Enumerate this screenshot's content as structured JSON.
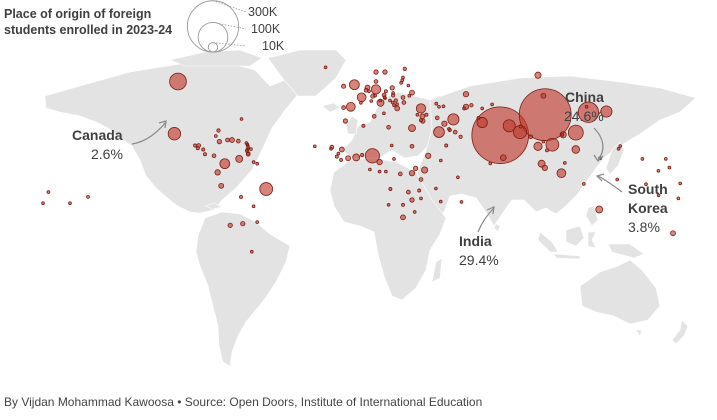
{
  "legend": {
    "title": "Place of origin of foreign students enrolled in 2023-24",
    "sizes": [
      {
        "label": "300K",
        "value": 300000
      },
      {
        "label": "100K",
        "value": 100000
      },
      {
        "label": "10K",
        "value": 10000
      }
    ]
  },
  "colors": {
    "bubble_fill": "#c0392b",
    "bubble_stroke": "#7b1d14",
    "land": "#e3e3e3",
    "water": "#ffffff"
  },
  "annotations": {
    "china": {
      "name": "China",
      "share": "24.6%"
    },
    "india": {
      "name": "India",
      "share": "29.4%"
    },
    "canada": {
      "name": "Canada",
      "share": "2.6%"
    },
    "korea": {
      "name_line1": "South",
      "name_line2": "Korea",
      "share": "3.8%"
    }
  },
  "chart_data": {
    "type": "scatter",
    "title": "Place of origin of foreign students enrolled in 2023-24",
    "size_legend": [
      300000,
      100000,
      10000
    ],
    "points": [
      {
        "lon": 104,
        "lat": 35,
        "value": 277000
      },
      {
        "lon": 79,
        "lat": 22,
        "value": 331000
      },
      {
        "lon": -100,
        "lat": 56,
        "value": 29000
      },
      {
        "lon": 128,
        "lat": 36.5,
        "value": 43000
      },
      {
        "lon": 90,
        "lat": 24,
        "value": 18000
      },
      {
        "lon": 84,
        "lat": 28,
        "value": 15000
      },
      {
        "lon": 108,
        "lat": 16,
        "value": 17000
      },
      {
        "lon": 138,
        "lat": 37,
        "value": 13000
      },
      {
        "lon": 121,
        "lat": 23.7,
        "value": 23000
      },
      {
        "lon": 100,
        "lat": 15,
        "value": 7000
      },
      {
        "lon": 113,
        "lat": -2,
        "value": 8000
      },
      {
        "lon": 121,
        "lat": 13,
        "value": 6000
      },
      {
        "lon": 45,
        "lat": 24,
        "value": 12000
      },
      {
        "lon": 8,
        "lat": 9,
        "value": 21000
      },
      {
        "lon": 37,
        "lat": 0,
        "value": 4000
      },
      {
        "lon": 35,
        "lat": 39,
        "value": 9000
      },
      {
        "lon": 53,
        "lat": 32,
        "value": 13000
      },
      {
        "lon": 69,
        "lat": 30,
        "value": 11000
      },
      {
        "lon": -51,
        "lat": -12,
        "value": 17000
      },
      {
        "lon": -102,
        "lat": 23,
        "value": 16000
      },
      {
        "lon": -74,
        "lat": 4,
        "value": 10000
      },
      {
        "lon": 10,
        "lat": 51,
        "value": 9000
      },
      {
        "lon": -2,
        "lat": 54,
        "value": 10000
      },
      {
        "lon": 2,
        "lat": 46,
        "value": 8000
      },
      {
        "lon": 12.5,
        "lat": 42.5,
        "value": 5000
      },
      {
        "lon": -4,
        "lat": 40,
        "value": 8000
      },
      {
        "lon": 134,
        "lat": -25,
        "value": 5000
      },
      {
        "lon": 100,
        "lat": 60,
        "value": 4000
      },
      {
        "lon": 60,
        "lat": 48,
        "value": 3000
      },
      {
        "lon": 60,
        "lat": 40,
        "value": 3000
      },
      {
        "lon": 30,
        "lat": 49,
        "value": 2500
      },
      {
        "lon": 19,
        "lat": 52,
        "value": 2000
      },
      {
        "lon": -64,
        "lat": -34,
        "value": 2000
      },
      {
        "lon": -71,
        "lat": -35,
        "value": 2000
      },
      {
        "lon": -76,
        "lat": -10,
        "value": 2500
      },
      {
        "lon": -78,
        "lat": -1.5,
        "value": 3000
      },
      {
        "lon": -66,
        "lat": 7,
        "value": 5000
      },
      {
        "lon": -70,
        "lat": 19,
        "value": 2500
      },
      {
        "lon": -77,
        "lat": 18,
        "value": 2000
      },
      {
        "lon": -72.5,
        "lat": 19,
        "value": 1500
      },
      {
        "lon": -66.5,
        "lat": 18.3,
        "value": 1500
      },
      {
        "lon": -61,
        "lat": 10.5,
        "value": 1500
      },
      {
        "lon": -61,
        "lat": 14,
        "value": 700
      },
      {
        "lon": -61.2,
        "lat": 15.4,
        "value": 700
      },
      {
        "lon": -61.5,
        "lat": 16.2,
        "value": 700
      },
      {
        "lon": -62,
        "lat": 17.1,
        "value": 700
      },
      {
        "lon": -61.5,
        "lat": 13,
        "value": 700
      },
      {
        "lon": -59.5,
        "lat": 13.2,
        "value": 700
      },
      {
        "lon": -61.8,
        "lat": 12.1,
        "value": 700
      },
      {
        "lon": -88.5,
        "lat": 15.5,
        "value": 1500
      },
      {
        "lon": -86,
        "lat": 13,
        "value": 1000
      },
      {
        "lon": -85,
        "lat": 10,
        "value": 1000
      },
      {
        "lon": -80,
        "lat": 9,
        "value": 1500
      },
      {
        "lon": -89,
        "lat": 13.8,
        "value": 1000
      },
      {
        "lon": -90.5,
        "lat": 15.5,
        "value": 1000
      },
      {
        "lon": -79,
        "lat": 21.5,
        "value": 700
      },
      {
        "lon": -77.5,
        "lat": 25,
        "value": 1200
      },
      {
        "lon": -58,
        "lat": 5,
        "value": 700
      },
      {
        "lon": -56,
        "lat": 4,
        "value": 500
      },
      {
        "lon": -65,
        "lat": -17,
        "value": 1000
      },
      {
        "lon": -58,
        "lat": -23,
        "value": 800
      },
      {
        "lon": -56,
        "lat": -33,
        "value": 700
      },
      {
        "lon": -61,
        "lat": 10,
        "value": 1500
      },
      {
        "lon": -64.7,
        "lat": 32.3,
        "value": 500
      },
      {
        "lon": -24,
        "lat": 15,
        "value": 500
      },
      {
        "lon": -59,
        "lat": -51.7,
        "value": 300
      },
      {
        "lon": -150,
        "lat": -17,
        "value": 300
      },
      {
        "lon": -172,
        "lat": -14,
        "value": 300
      },
      {
        "lon": -160,
        "lat": -21,
        "value": 300
      },
      {
        "lon": 3,
        "lat": 28,
        "value": 1000
      },
      {
        "lon": -7,
        "lat": 31,
        "value": 2000
      },
      {
        "lon": 9,
        "lat": 34,
        "value": 1500
      },
      {
        "lon": 17,
        "lat": 27,
        "value": 1500
      },
      {
        "lon": 30,
        "lat": 26.5,
        "value": 5000
      },
      {
        "lon": 30,
        "lat": 15,
        "value": 1500
      },
      {
        "lon": 39,
        "lat": 9,
        "value": 3000
      },
      {
        "lon": 46,
        "lat": 6,
        "value": 800
      },
      {
        "lon": -1,
        "lat": 8,
        "value": 5000
      },
      {
        "lon": -9,
        "lat": 13,
        "value": 2500
      },
      {
        "lon": 12,
        "lat": 5,
        "value": 3000
      },
      {
        "lon": -5.5,
        "lat": 7.5,
        "value": 2500
      },
      {
        "lon": 2.3,
        "lat": 9.5,
        "value": 1000
      },
      {
        "lon": -14.5,
        "lat": 14.5,
        "value": 1500
      },
      {
        "lon": -11.8,
        "lat": 8.5,
        "value": 1000
      },
      {
        "lon": -9.4,
        "lat": 6.4,
        "value": 1000
      },
      {
        "lon": -15,
        "lat": 13.4,
        "value": 600
      },
      {
        "lon": -10.9,
        "lat": 10.4,
        "value": 700
      },
      {
        "lon": 18.7,
        "lat": 15.5,
        "value": 500
      },
      {
        "lon": 20,
        "lat": 7,
        "value": 500
      },
      {
        "lon": 23.5,
        "lat": -2.5,
        "value": 1500
      },
      {
        "lon": 12,
        "lat": -1,
        "value": 500
      },
      {
        "lon": 15.5,
        "lat": -1,
        "value": 600
      },
      {
        "lon": 18,
        "lat": -12,
        "value": 1000
      },
      {
        "lon": 32,
        "lat": 1,
        "value": 2000
      },
      {
        "lon": 30,
        "lat": -2,
        "value": 3000
      },
      {
        "lon": 35,
        "lat": -6,
        "value": 1500
      },
      {
        "lon": 34,
        "lat": -13,
        "value": 1000
      },
      {
        "lon": 28,
        "lat": -14,
        "value": 1500
      },
      {
        "lon": 30,
        "lat": -19,
        "value": 2000
      },
      {
        "lon": 25,
        "lat": -22,
        "value": 1000
      },
      {
        "lon": 17,
        "lat": -22,
        "value": 500
      },
      {
        "lon": 25,
        "lat": -30,
        "value": 2500
      },
      {
        "lon": 35,
        "lat": -18,
        "value": 800
      },
      {
        "lon": 46,
        "lat": -20,
        "value": 600
      },
      {
        "lon": 31.5,
        "lat": -26.5,
        "value": 500
      },
      {
        "lon": 57.5,
        "lat": -20.2,
        "value": 300
      },
      {
        "lon": 49,
        "lat": 15.5,
        "value": 1000
      },
      {
        "lon": 57,
        "lat": 21,
        "value": 1200
      },
      {
        "lon": 54,
        "lat": 24,
        "value": 1500
      },
      {
        "lon": 51,
        "lat": 25.3,
        "value": 1000
      },
      {
        "lon": 48,
        "lat": 29.3,
        "value": 3000
      },
      {
        "lon": 50.5,
        "lat": 26,
        "value": 700
      },
      {
        "lon": 36,
        "lat": 31,
        "value": 2000
      },
      {
        "lon": 35.8,
        "lat": 33.9,
        "value": 2500
      },
      {
        "lon": 38,
        "lat": 35,
        "value": 1000
      },
      {
        "lon": 44,
        "lat": 33,
        "value": 1500
      },
      {
        "lon": 35,
        "lat": 31.5,
        "value": 1200
      },
      {
        "lon": 33,
        "lat": 35,
        "value": 800
      },
      {
        "lon": 45,
        "lat": 40,
        "value": 600
      },
      {
        "lon": 47.5,
        "lat": 40.3,
        "value": 800
      },
      {
        "lon": 43.5,
        "lat": 42,
        "value": 900
      },
      {
        "lon": 63,
        "lat": 41,
        "value": 1200
      },
      {
        "lon": 59,
        "lat": 39,
        "value": 1000
      },
      {
        "lon": 69,
        "lat": 39,
        "value": 600
      },
      {
        "lon": 74.5,
        "lat": 41.5,
        "value": 800
      },
      {
        "lon": 67,
        "lat": 33,
        "value": 1000
      },
      {
        "lon": 103.8,
        "lat": 1.35,
        "value": 3000
      },
      {
        "lon": 102,
        "lat": 4,
        "value": 5000
      },
      {
        "lon": 96,
        "lat": 21,
        "value": 1500
      },
      {
        "lon": 105,
        "lat": 12.5,
        "value": 1000
      },
      {
        "lon": 103,
        "lat": 18,
        "value": 700
      },
      {
        "lon": 114.9,
        "lat": 4.5,
        "value": 500
      },
      {
        "lon": 90.4,
        "lat": 27.5,
        "value": 1000
      },
      {
        "lon": 80.7,
        "lat": 7.8,
        "value": 3500
      },
      {
        "lon": 73.5,
        "lat": 4.2,
        "value": 400
      },
      {
        "lon": 114,
        "lat": 22.3,
        "value": 4000
      },
      {
        "lon": 113.5,
        "lat": 22.2,
        "value": 600
      },
      {
        "lon": 127,
        "lat": 40,
        "value": 600
      },
      {
        "lon": 103,
        "lat": 47,
        "value": 2500
      },
      {
        "lon": 125.5,
        "lat": -8.8,
        "value": 400
      },
      {
        "lon": 144,
        "lat": -6,
        "value": 700
      },
      {
        "lon": 178,
        "lat": -18,
        "value": 600
      },
      {
        "lon": 160,
        "lat": -9,
        "value": 300
      },
      {
        "lon": 167,
        "lat": -16,
        "value": 300
      },
      {
        "lon": 175,
        "lat": -40,
        "value": 2500
      },
      {
        "lon": 134.5,
        "lat": 7.5,
        "value": 300
      },
      {
        "lon": 158,
        "lat": 7,
        "value": 400
      },
      {
        "lon": 171,
        "lat": 7,
        "value": 300
      },
      {
        "lon": 144.8,
        "lat": 13.4,
        "value": 300
      },
      {
        "lon": 145.7,
        "lat": 15.2,
        "value": 300
      },
      {
        "lon": 173,
        "lat": 1.5,
        "value": 300
      },
      {
        "lon": -175,
        "lat": -21,
        "value": 400
      },
      {
        "lon": 166.9,
        "lat": -0.5,
        "value": 200
      },
      {
        "lon": 179,
        "lat": -8.5,
        "value": 200
      },
      {
        "lon": 55.5,
        "lat": -4.6,
        "value": 300
      },
      {
        "lon": 6.6,
        "lat": 0.3,
        "value": 200
      },
      {
        "lon": 43.3,
        "lat": -11.7,
        "value": 300
      },
      {
        "lon": -18,
        "lat": 65,
        "value": 800
      },
      {
        "lon": 10,
        "lat": 62,
        "value": 2000
      },
      {
        "lon": 15,
        "lat": 62,
        "value": 2000
      },
      {
        "lon": 26,
        "lat": 64,
        "value": 1200
      },
      {
        "lon": 10,
        "lat": 56,
        "value": 1500
      },
      {
        "lon": -8,
        "lat": 53,
        "value": 1800
      },
      {
        "lon": 5.3,
        "lat": 52.2,
        "value": 2500
      },
      {
        "lon": 4.5,
        "lat": 50.5,
        "value": 1500
      },
      {
        "lon": 8.2,
        "lat": 46.8,
        "value": 1800
      },
      {
        "lon": 14.5,
        "lat": 47.5,
        "value": 1500
      },
      {
        "lon": 15.5,
        "lat": 49.8,
        "value": 1000
      },
      {
        "lon": 19.5,
        "lat": 48.7,
        "value": 600
      },
      {
        "lon": 19.5,
        "lat": 47.2,
        "value": 1200
      },
      {
        "lon": 25,
        "lat": 45.9,
        "value": 1500
      },
      {
        "lon": 25.5,
        "lat": 42.7,
        "value": 1500
      },
      {
        "lon": 21.8,
        "lat": 39,
        "value": 2500
      },
      {
        "lon": 20,
        "lat": 41,
        "value": 800
      },
      {
        "lon": 21,
        "lat": 44,
        "value": 1200
      },
      {
        "lon": 15,
        "lat": 45.5,
        "value": 600
      },
      {
        "lon": 17.8,
        "lat": 44,
        "value": 600
      },
      {
        "lon": 19.3,
        "lat": 42.7,
        "value": 400
      },
      {
        "lon": 21.7,
        "lat": 41.6,
        "value": 600
      },
      {
        "lon": 14.8,
        "lat": 46.1,
        "value": 500
      },
      {
        "lon": 28,
        "lat": 53.5,
        "value": 800
      },
      {
        "lon": 24,
        "lat": 55.2,
        "value": 900
      },
      {
        "lon": 24.6,
        "lat": 56.9,
        "value": 700
      },
      {
        "lon": 25,
        "lat": 58.6,
        "value": 500
      },
      {
        "lon": 28.5,
        "lat": 47,
        "value": 800
      },
      {
        "lon": -8,
        "lat": 39.5,
        "value": 1500
      },
      {
        "lon": 6.1,
        "lat": 49.8,
        "value": 300
      },
      {
        "lon": 14.4,
        "lat": 35.9,
        "value": 300
      },
      {
        "lon": 12.4,
        "lat": 43.9,
        "value": 200
      },
      {
        "lon": 7.4,
        "lat": 43.7,
        "value": 200
      },
      {
        "lon": 9.5,
        "lat": 47.1,
        "value": 200
      },
      {
        "lon": 1.6,
        "lat": 42.5,
        "value": 200
      }
    ]
  },
  "footer": {
    "credit": "By Vijdan Mohammad Kawoosa • Source: Open Doors, Institute of International Education"
  }
}
